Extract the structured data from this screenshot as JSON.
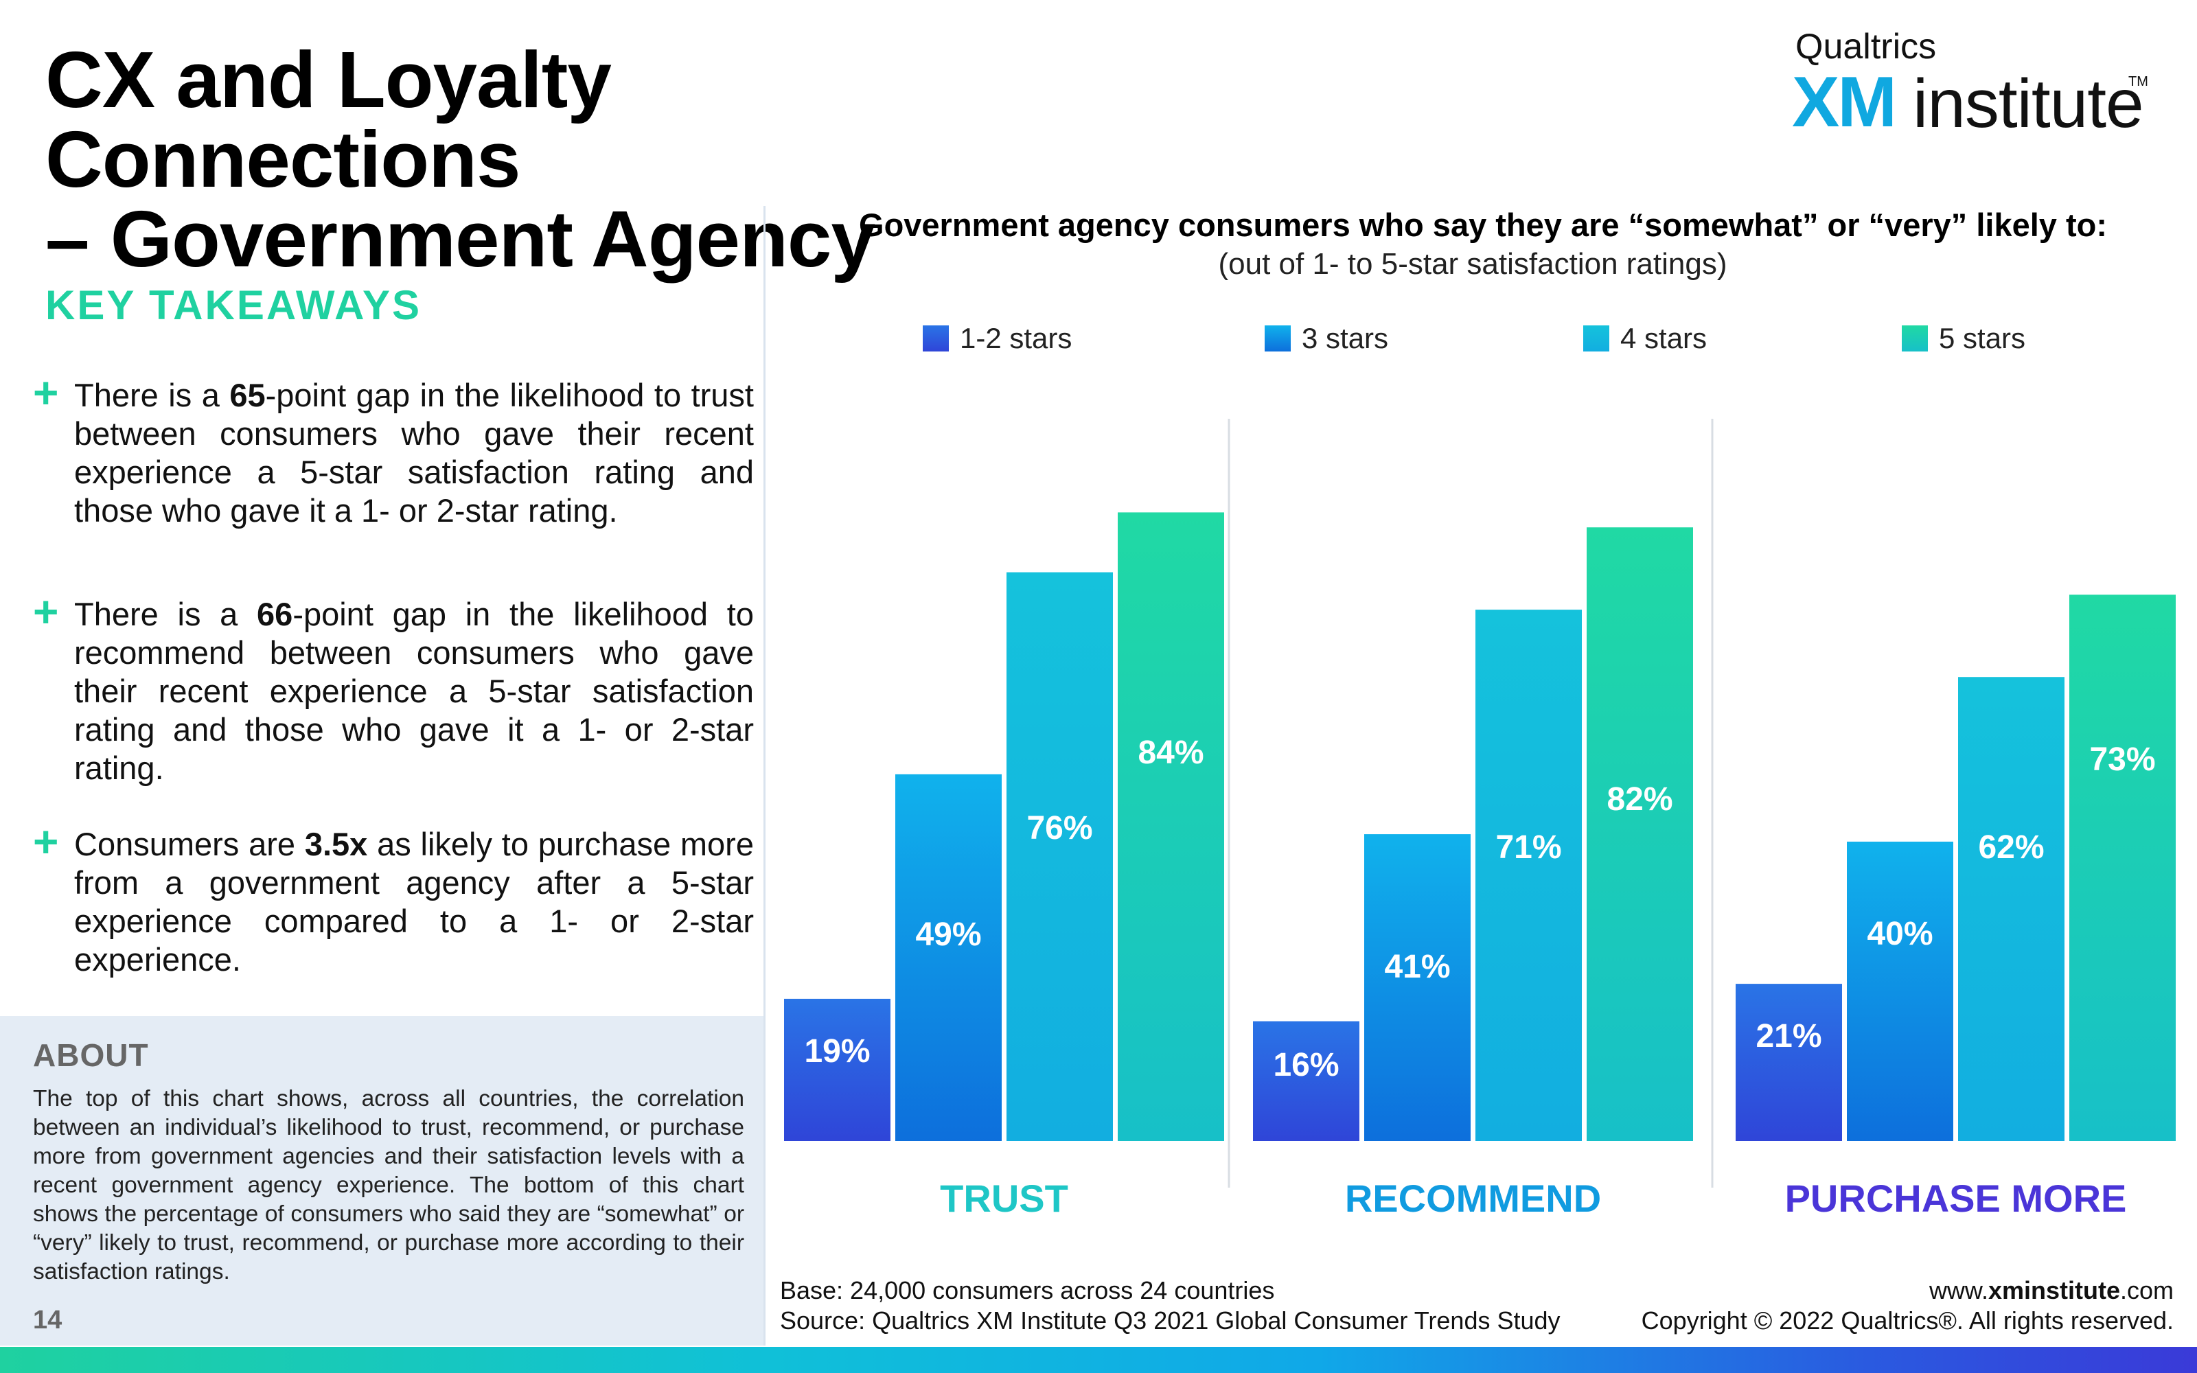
{
  "title": {
    "line1": "CX and Loyalty Connections",
    "line2": "– Government Agency"
  },
  "brand": {
    "top": "Qualtrics",
    "xm": "XM",
    "institute": "institute",
    "tm": "TM"
  },
  "takeaways": {
    "heading": "KEY TAKEAWAYS",
    "items": [
      {
        "pre": "There is a ",
        "bold": "65",
        "post": "-point gap in the likelihood to trust between consumers who gave their recent experience a 5-star satisfaction rating and those who gave it a 1- or 2-star rating."
      },
      {
        "pre": "There is a ",
        "bold": "66",
        "post": "-point gap in the likelihood to recommend between consumers who gave their recent experience a 5-star satisfaction rating and those who gave it a 1- or 2-star rating."
      },
      {
        "pre": "Consumers are ",
        "bold": "3.5x",
        "post": " as likely to purchase more from a government agency after a 5-star experience compared to a 1- or 2-star experience."
      }
    ]
  },
  "about": {
    "heading": "ABOUT",
    "text": "The top of this chart shows, across all countries, the correlation between an individual’s likelihood to trust, recommend, or purchase more from government agencies and their satisfaction levels with a recent government agency experience. The bottom of this chart shows the percentage of consumers who said they are “somewhat” or “very” likely to trust, recommend, or purchase more according to their satisfaction ratings."
  },
  "page_number": "14",
  "footer": {
    "base": "Base: 24,000 consumers across 24 countries",
    "source": "Source: Qualtrics XM Institute Q3 2021 Global Consumer Trends Study",
    "website_pre": "www.",
    "website_bold": "xminstitute",
    "website_post": ".com",
    "copyright": "Copyright © 2022 Qualtrics®. All rights reserved."
  },
  "chart_data": {
    "type": "bar",
    "title": "Government agency consumers who say they are “somewhat” or “very” likely to:",
    "subtitle": "(out of 1- to 5-star satisfaction ratings)",
    "categories": [
      "TRUST",
      "RECOMMEND",
      "PURCHASE MORE"
    ],
    "category_colors": [
      "#1ec6c6",
      "#109be0",
      "#4a35d8"
    ],
    "unit": "%",
    "ylim": [
      0,
      100
    ],
    "grid": false,
    "legend_position": "top",
    "series": [
      {
        "name": "1-2 stars",
        "values": [
          19,
          16,
          21
        ],
        "color_top": "#2a74e6",
        "color_bottom": "#2f45d8"
      },
      {
        "name": "3 stars",
        "values": [
          49,
          41,
          40
        ],
        "color_top": "#10b2ec",
        "color_bottom": "#0d6fdc"
      },
      {
        "name": "4 stars",
        "values": [
          76,
          71,
          62
        ],
        "color_top": "#15c2dc",
        "color_bottom": "#12aee0"
      },
      {
        "name": "5 stars",
        "values": [
          84,
          82,
          73
        ],
        "color_top": "#20d9a4",
        "color_bottom": "#17c0c8"
      }
    ],
    "value_labels": [
      [
        "19%",
        "16%",
        "21%"
      ],
      [
        "49%",
        "41%",
        "40%"
      ],
      [
        "76%",
        "71%",
        "62%"
      ],
      [
        "84%",
        "82%",
        "73%"
      ]
    ]
  }
}
